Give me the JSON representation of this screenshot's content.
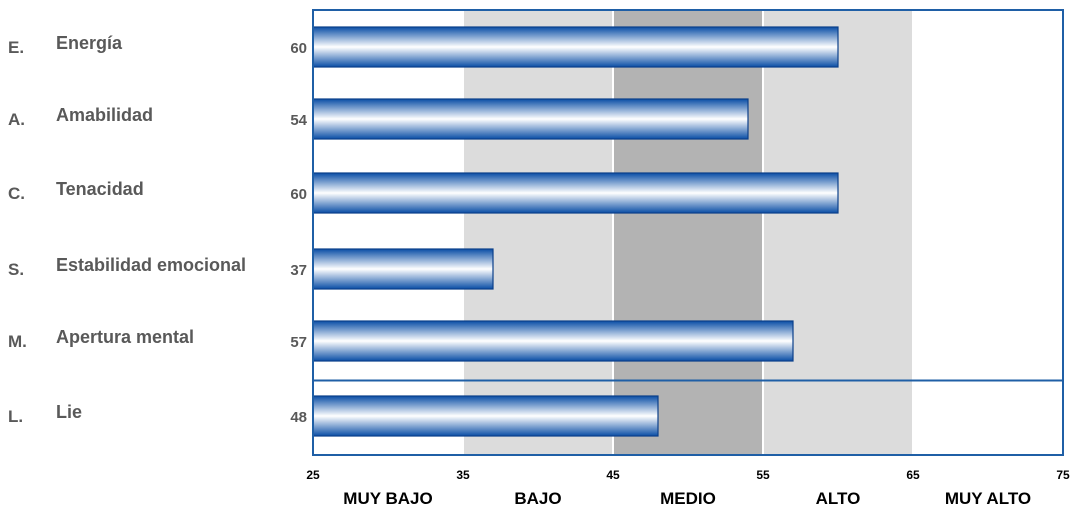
{
  "chart_data": {
    "type": "bar",
    "orientation": "horizontal",
    "categories": [
      {
        "letter": "E.",
        "name": "Energía"
      },
      {
        "letter": "A.",
        "name": "Amabilidad"
      },
      {
        "letter": "C.",
        "name": "Tenacidad"
      },
      {
        "letter": "S.",
        "name": "Estabilidad emocional"
      },
      {
        "letter": "M.",
        "name": "Apertura mental"
      },
      {
        "letter": "L.",
        "name": "Lie"
      }
    ],
    "values": [
      60,
      54,
      60,
      37,
      57,
      48
    ],
    "xlim": [
      25,
      75
    ],
    "xticks": [
      "25",
      "35",
      "45",
      "55",
      "65",
      "75"
    ],
    "bands": [
      {
        "label": "MUY BAJO",
        "from": 25,
        "to": 35,
        "color": "#ffffff"
      },
      {
        "label": "BAJO",
        "from": 35,
        "to": 45,
        "color": "#dcdcdc"
      },
      {
        "label": "MEDIO",
        "from": 45,
        "to": 55,
        "color": "#b3b3b3"
      },
      {
        "label": "ALTO",
        "from": 55,
        "to": 65,
        "color": "#dcdcdc"
      },
      {
        "label": "MUY ALTO",
        "from": 65,
        "to": 75,
        "color": "#ffffff"
      }
    ],
    "separator_after_index": 4,
    "colors": {
      "bar_dark": "#0a4ea6",
      "bar_light": "#ffffff",
      "frame": "#1f5fa6"
    }
  }
}
